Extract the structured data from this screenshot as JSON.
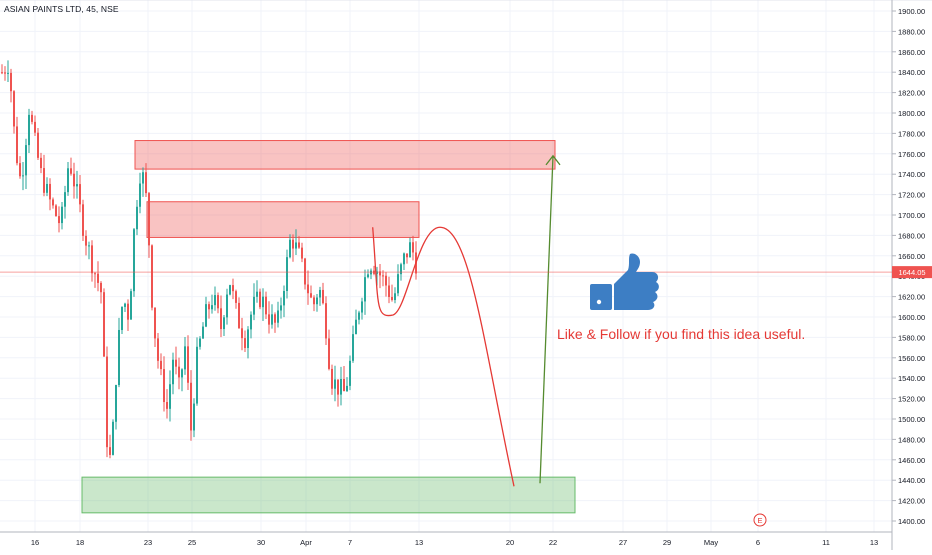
{
  "header": {
    "symbol_title": "ASIAN PAINTS LTD, 45, NSE"
  },
  "annotation": {
    "text": "Like & Follow if you find this idea useful.",
    "icon": "thumbs-up-icon",
    "icon_color": "#3d7ec4",
    "color": "#e53935"
  },
  "event_marker": {
    "label": "E",
    "color": "#e53935"
  },
  "chart_data": {
    "type": "candlestick",
    "title": "ASIAN PAINTS LTD, 45, NSE",
    "ylim": [
      1392,
      1912
    ],
    "y_ticks": [
      "1900.00",
      "1880.00",
      "1860.00",
      "1840.00",
      "1820.00",
      "1800.00",
      "1780.00",
      "1760.00",
      "1740.00",
      "1720.00",
      "1700.00",
      "1680.00",
      "1660.00",
      "1640.00",
      "1620.00",
      "1600.00",
      "1580.00",
      "1560.00",
      "1540.00",
      "1520.00",
      "1500.00",
      "1480.00",
      "1460.00",
      "1440.00",
      "1420.00",
      "1400.00"
    ],
    "x_ticks": [
      "16",
      "18",
      "23",
      "25",
      "30",
      "Apr",
      "7",
      "13",
      "20",
      "22",
      "27",
      "29",
      "May",
      "6",
      "11",
      "13"
    ],
    "current_price": {
      "value": 1644,
      "label": "1644.05",
      "color": "#ef5350"
    },
    "grid": true,
    "up_color": "#26a69a",
    "down_color": "#ef5350",
    "zones": [
      {
        "name": "resistance-upper",
        "start": "21",
        "end": "22",
        "low": 1745,
        "high": 1773,
        "color": "#ef5350"
      },
      {
        "name": "resistance-lower",
        "start": "21",
        "end": "13",
        "low": 1678,
        "high": 1713,
        "color": "#ef5350"
      },
      {
        "name": "support",
        "start": "18",
        "end": "23",
        "low": 1408,
        "high": 1443,
        "color": "#66bb6a"
      }
    ],
    "projections": [
      {
        "name": "bearish-path",
        "color": "#e53935",
        "points": [
          [
            372.7,
            1688
          ],
          [
            393,
            1602
          ],
          [
            440,
            1688
          ],
          [
            514,
            1434
          ]
        ]
      },
      {
        "name": "bullish-path",
        "color": "#558b2f",
        "points": [
          [
            540,
            1437
          ],
          [
            553,
            1758
          ]
        ]
      }
    ]
  }
}
